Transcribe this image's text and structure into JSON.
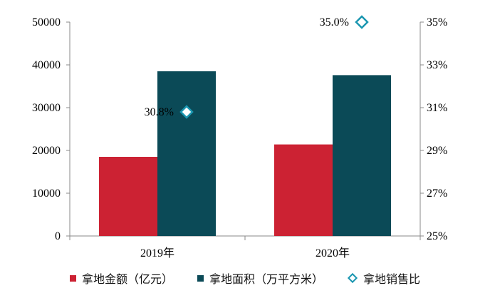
{
  "chart_data": {
    "type": "bar",
    "categories": [
      "2019年",
      "2020年"
    ],
    "series": [
      {
        "name": "拿地金额（亿元）",
        "type": "bar",
        "axis": "left",
        "color": "#cc2233",
        "values": [
          18500,
          21400
        ]
      },
      {
        "name": "拿地面积（万平方米）",
        "type": "bar",
        "axis": "left",
        "color": "#0b4a57",
        "values": [
          38500,
          37600
        ]
      },
      {
        "name": "拿地销售比",
        "type": "scatter",
        "marker": "diamond",
        "axis": "right",
        "color": "#1a96b0",
        "values": [
          30.8,
          35.0
        ],
        "labels": [
          "30.8%",
          "35.0%"
        ]
      }
    ],
    "y_left": {
      "min": 0,
      "max": 50000,
      "ticks": [
        "0",
        "10000",
        "20000",
        "30000",
        "40000",
        "50000"
      ]
    },
    "y_right": {
      "min": 25,
      "max": 35,
      "ticks": [
        "25%",
        "27%",
        "29%",
        "31%",
        "33%",
        "35%"
      ]
    },
    "title": "",
    "xlabel": "",
    "ylabel": "",
    "grid": false,
    "legend_position": "bottom"
  }
}
